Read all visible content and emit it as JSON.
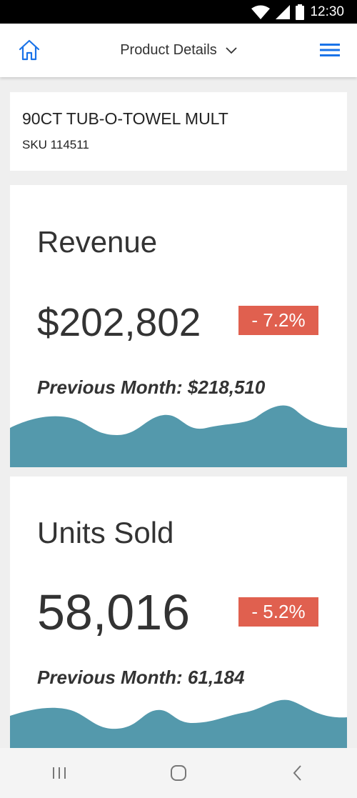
{
  "status_bar": {
    "time": "12:30"
  },
  "header": {
    "title": "Product Details"
  },
  "product": {
    "name": "90CT TUB-O-TOWEL MULT",
    "sku": "SKU 114511"
  },
  "metrics": [
    {
      "title": "Revenue",
      "value": "$202,802",
      "change": "- 7.2%",
      "previous": "Previous Month: $218,510"
    },
    {
      "title": "Units Sold",
      "value": "58,016",
      "change": "- 5.2%",
      "previous": "Previous Month: 61,184"
    }
  ],
  "colors": {
    "accent": "#1a73e8",
    "wave": "#5499ac",
    "badge": "#e0604f"
  },
  "icons": {
    "home": "home-icon",
    "menu": "hamburger-menu-icon",
    "dropdown": "chevron-down-icon"
  }
}
